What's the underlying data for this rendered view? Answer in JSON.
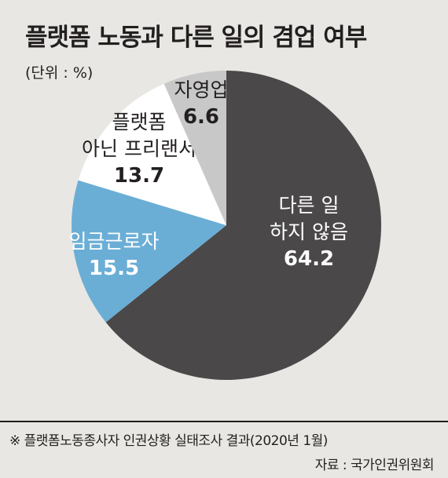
{
  "header": {
    "title": "플랫폼 노동과 다른 일의 겸업 여부",
    "unit": "(단위 : %)"
  },
  "footer": {
    "note": "※ 플랫폼노동종사자 인권상황 실태조사 결과(2020년 1월)",
    "source": "자료 : 국가인권위원회"
  },
  "chart_data": {
    "type": "pie",
    "title": "플랫폼 노동과 다른 일의 겸업 여부",
    "slices": [
      {
        "label_lines": [
          "다른 일",
          "하지 않음"
        ],
        "value": 64.2,
        "value_label": "64.2",
        "color": "#4a4848",
        "text_color": "#ffffff"
      },
      {
        "label_lines": [
          "임금근로자"
        ],
        "value": 15.5,
        "value_label": "15.5",
        "color": "#6aaed6",
        "text_color": "#ffffff"
      },
      {
        "label_lines": [
          "플랫폼",
          "아닌 프리랜서"
        ],
        "value": 13.7,
        "value_label": "13.7",
        "color": "#ffffff",
        "text_color": "#231f20"
      },
      {
        "label_lines": [
          "자영업"
        ],
        "value": 6.6,
        "value_label": "6.6",
        "color": "#c8c8c8",
        "text_color": "#231f20"
      }
    ]
  }
}
